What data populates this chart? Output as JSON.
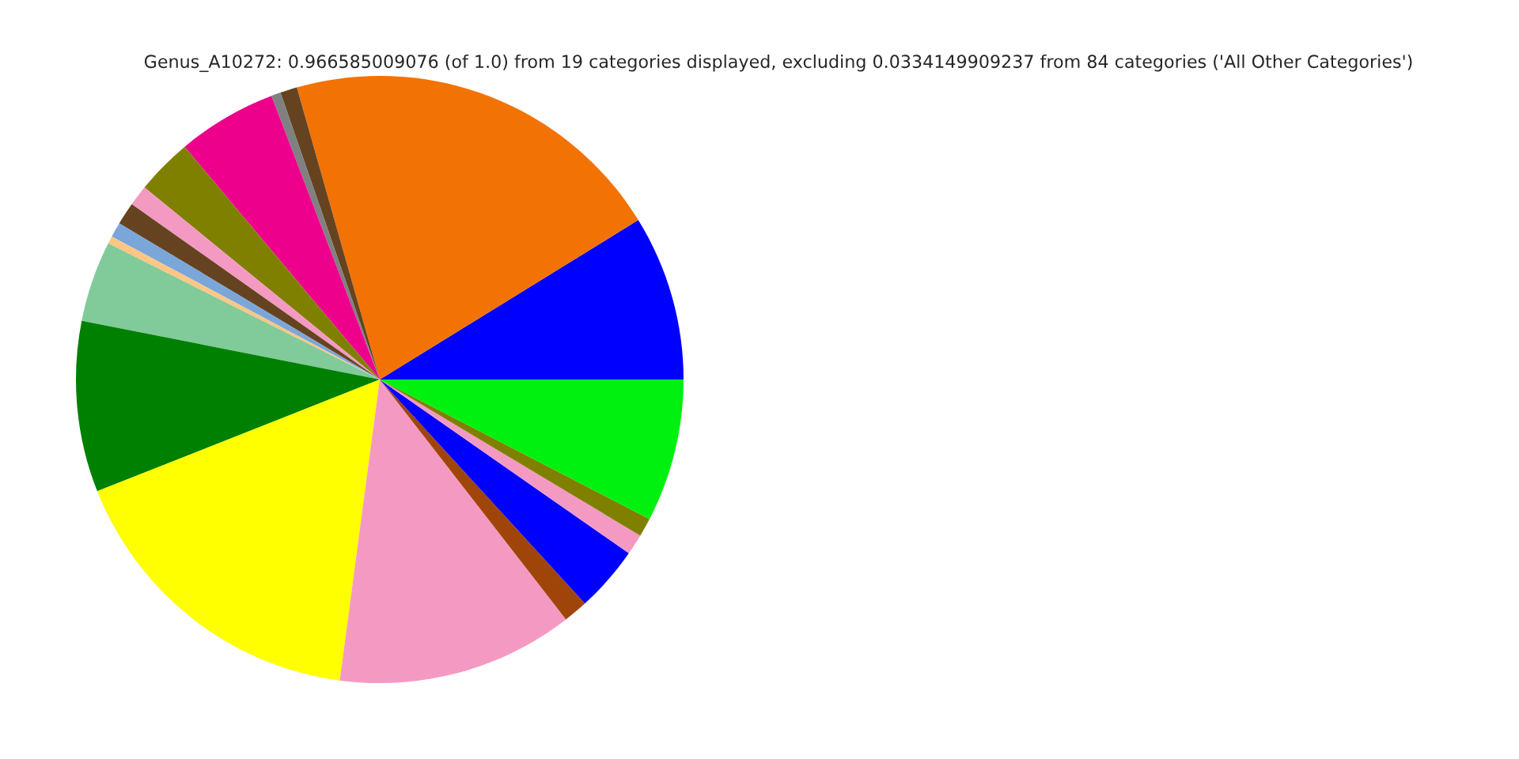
{
  "chart_data": {
    "type": "pie",
    "title": "Genus_A10272: 0.966585009076 (of 1.0) from 19 categories displayed, excluding 0.0334149909237 from 84 categories ('All Other Categories')",
    "categories": [
      null,
      null,
      null,
      null,
      null,
      null,
      null,
      null,
      null,
      null,
      null,
      null,
      null,
      null,
      null,
      null,
      null,
      null,
      null
    ],
    "values": [
      8.8,
      20.6,
      0.9,
      0.5,
      5.3,
      3.0,
      1.1,
      1.2,
      0.8,
      0.4,
      4.3,
      9.1,
      16.9,
      12.6,
      1.3,
      3.5,
      1.1,
      1.0,
      7.6
    ],
    "colors": [
      "#0000ff",
      "#f27304",
      "#654321",
      "#808080",
      "#ec008c",
      "#808000",
      "#f49ac2",
      "#654321",
      "#7aa6da",
      "#ffc685",
      "#80cb99",
      "#008000",
      "#ffff00",
      "#f49ac2",
      "#a0450a",
      "#0000ff",
      "#f49ac2",
      "#808000",
      "#00f00f"
    ],
    "legend": false
  }
}
